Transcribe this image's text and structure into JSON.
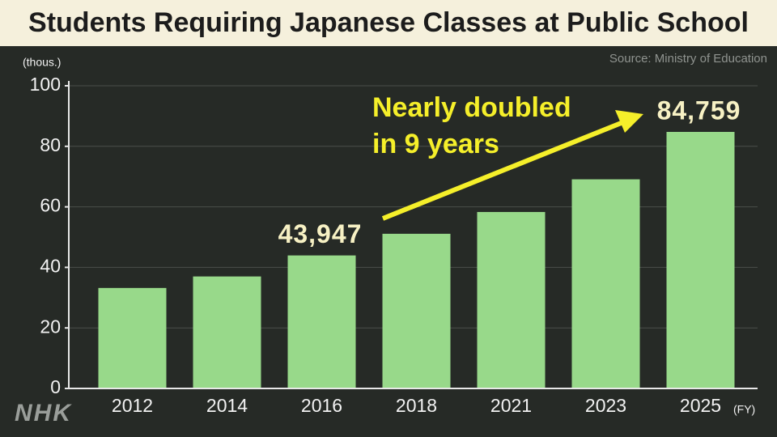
{
  "chart_data": {
    "type": "bar",
    "title": "Students Requiring Japanese Classes at Public School",
    "source": "Source: Ministry of Education",
    "y_unit": "(thous.)",
    "x_unit": "(FY)",
    "annotation": [
      "Nearly doubled",
      "in 9 years"
    ],
    "logo": "NHK",
    "categories": [
      "2012",
      "2014",
      "2016",
      "2018",
      "2021",
      "2023",
      "2025"
    ],
    "values": [
      33.2,
      37.0,
      43.947,
      51.1,
      58.3,
      69.1,
      84.759
    ],
    "value_labels": [
      null,
      null,
      "43,947",
      null,
      null,
      null,
      "84,759"
    ],
    "color": "#98d98a",
    "ylim": [
      0,
      100
    ],
    "yticks": [
      0,
      20,
      40,
      60,
      80,
      100
    ],
    "grid": true
  }
}
